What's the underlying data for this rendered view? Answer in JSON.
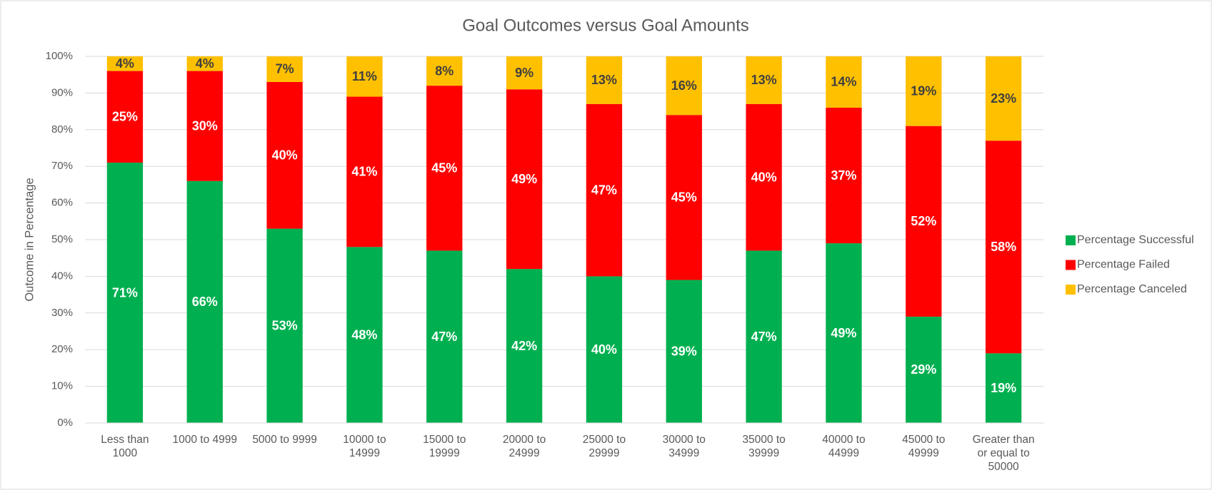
{
  "chart_data": {
    "type": "stacked_bar",
    "title": "Goal Outcomes versus Goal Amounts",
    "y_label": "Outcome in Percentage",
    "categories": [
      "Less than 1000",
      "1000 to 4999",
      "5000 to 9999",
      "10000 to 14999",
      "15000 to 19999",
      "20000 to 24999",
      "25000 to 29999",
      "30000 to 34999",
      "35000 to 39999",
      "40000 to 44999",
      "45000 to 49999",
      "Greater than or equal to 50000"
    ],
    "series": [
      {
        "name": "Percentage Successful",
        "color": "#00b050",
        "label_color": "#ffffff",
        "values": [
          71,
          66,
          53,
          48,
          47,
          42,
          40,
          39,
          47,
          49,
          29,
          19
        ],
        "value_labels": [
          "71%",
          "66%",
          "53%",
          "48%",
          "47%",
          "42%",
          "40%",
          "39%",
          "47%",
          "49%",
          "29%",
          "19%"
        ]
      },
      {
        "name": "Percentage Failed",
        "color": "#ff0000",
        "label_color": "#ffffff",
        "values": [
          25,
          30,
          40,
          41,
          45,
          49,
          47,
          45,
          40,
          37,
          52,
          58
        ],
        "value_labels": [
          "25%",
          "30%",
          "40%",
          "41%",
          "45%",
          "49%",
          "47%",
          "45%",
          "40%",
          "37%",
          "52%",
          "58%"
        ]
      },
      {
        "name": "Percentage Canceled",
        "color": "#ffc000",
        "label_color": "#404040",
        "values": [
          4,
          4,
          7,
          11,
          8,
          9,
          13,
          16,
          13,
          14,
          19,
          23
        ],
        "value_labels": [
          "4%",
          "4%",
          "7%",
          "11%",
          "8%",
          "9%",
          "13%",
          "16%",
          "13%",
          "14%",
          "19%",
          "23%"
        ]
      }
    ],
    "ylim": [
      0,
      100
    ],
    "yticks": [
      {
        "value": 0,
        "label": "0%"
      },
      {
        "value": 10,
        "label": "10%"
      },
      {
        "value": 20,
        "label": "20%"
      },
      {
        "value": 30,
        "label": "30%"
      },
      {
        "value": 40,
        "label": "40%"
      },
      {
        "value": 50,
        "label": "50%"
      },
      {
        "value": 60,
        "label": "60%"
      },
      {
        "value": 70,
        "label": "70%"
      },
      {
        "value": 80,
        "label": "80%"
      },
      {
        "value": 90,
        "label": "90%"
      },
      {
        "value": 100,
        "label": "100%"
      }
    ],
    "grid": true,
    "legend": "right"
  }
}
